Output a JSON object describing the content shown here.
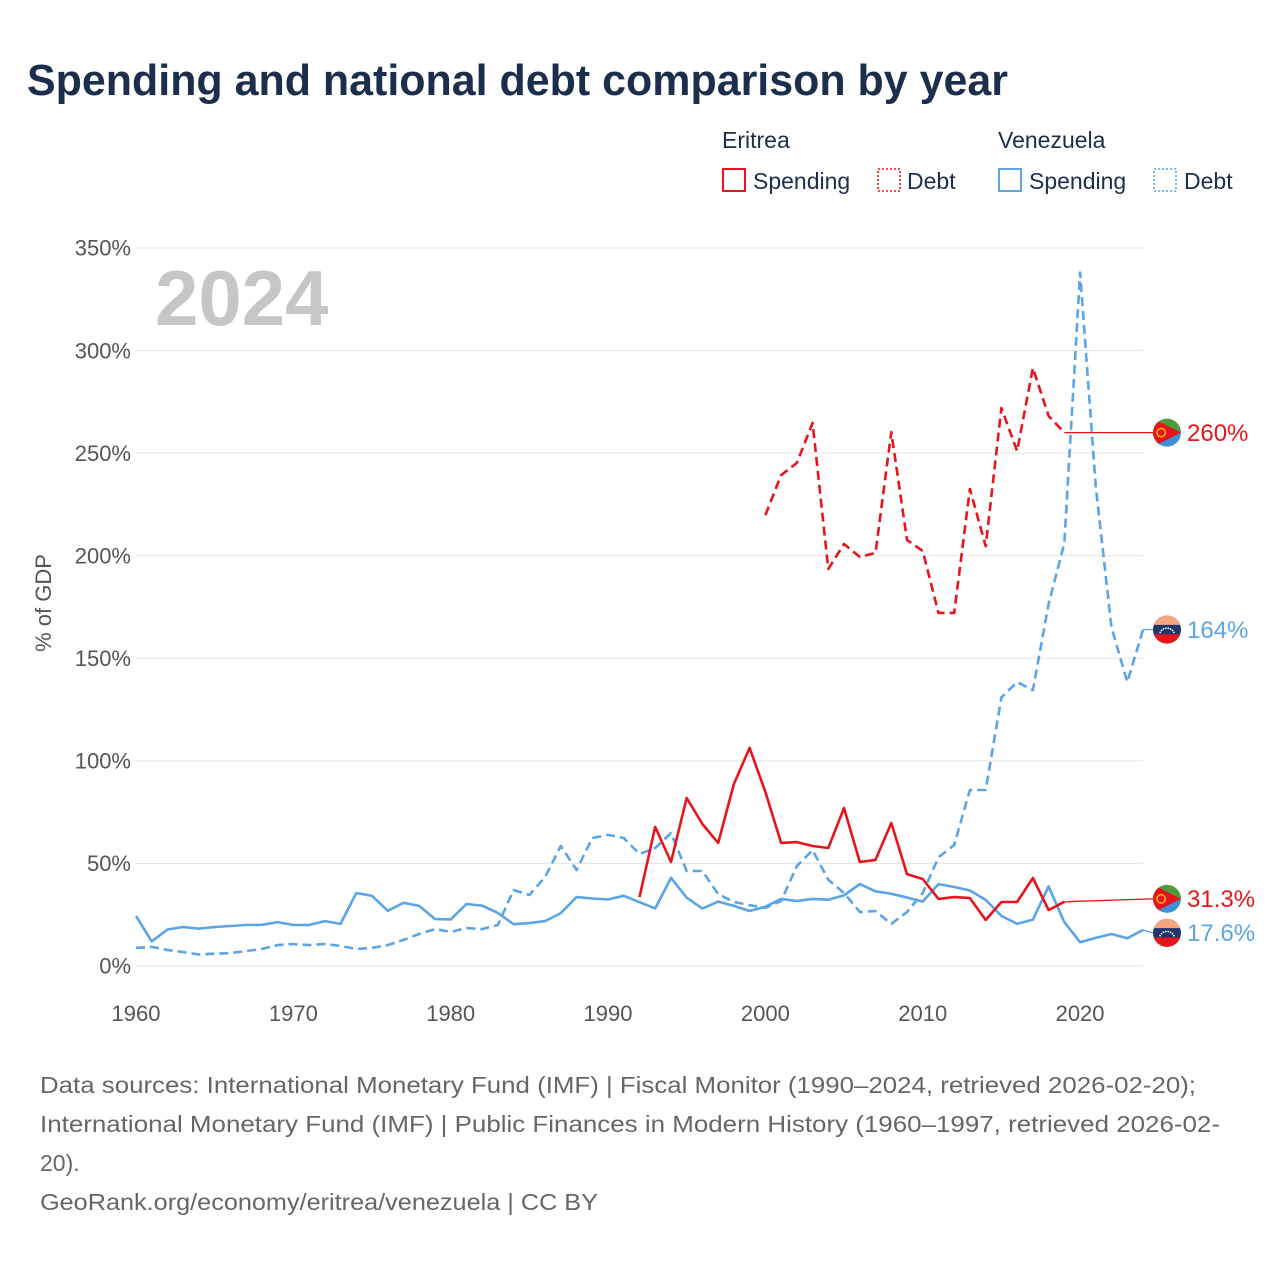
{
  "chart_data": {
    "type": "line",
    "title": "Spending and national debt comparison by year",
    "ylabel": "% of GDP",
    "year_label": "2024",
    "x_range": [
      1960,
      2024
    ],
    "ylim": [
      0,
      350
    ],
    "xticks": [
      1960,
      1970,
      1980,
      1990,
      2000,
      2010,
      2020
    ],
    "xtick_labels": [
      "1960",
      "1970",
      "1980",
      "1990",
      "2000",
      "2010",
      "2020"
    ],
    "yticks": [
      0,
      50,
      100,
      150,
      200,
      250,
      300,
      350
    ],
    "ytick_labels": [
      "0%",
      "50%",
      "100%",
      "150%",
      "200%",
      "250%",
      "300%",
      "350%"
    ],
    "grid": true,
    "legend_position": "top-right",
    "groups": [
      {
        "country": "Eritrea",
        "color": "#e8141b",
        "flag_icon": "eritrea-flag-icon",
        "series": [
          {
            "metric": "Spending",
            "dashed": false,
            "start_year": 1992,
            "values": [
              33.6,
              67.8,
              50.7,
              81.9,
              69.2,
              60.0,
              88.7,
              106.3,
              84.8,
              60.0,
              60.4,
              58.5,
              57.5,
              77.0,
              50.7,
              51.7,
              69.7,
              44.8,
              42.4,
              32.7,
              33.6,
              33.1,
              22.4,
              31.2,
              31.2,
              42.9,
              27.3,
              31.3
            ],
            "end_label": "31.3%"
          },
          {
            "metric": "Debt",
            "dashed": true,
            "start_year": 2000,
            "values": [
              219.8,
              239.3,
              245.2,
              264.7,
              193.5,
              205.7,
              199.4,
              201.3,
              260.3,
              207.7,
              202.3,
              172.1,
              172.1,
              232.5,
              204.7,
              272.0,
              251.0,
              291.5,
              268.1,
              260.0
            ],
            "end_label": "260%"
          }
        ]
      },
      {
        "country": "Venezuela",
        "color": "#5ba4e5",
        "flag_icon": "venezuela-flag-icon",
        "series": [
          {
            "metric": "Spending",
            "dashed": false,
            "start_year": 1960,
            "values": [
              24.4,
              12.0,
              17.8,
              19.0,
              18.2,
              19.0,
              19.5,
              20.0,
              20.1,
              21.4,
              20.0,
              20.0,
              21.9,
              20.5,
              35.6,
              34.2,
              26.9,
              30.8,
              29.3,
              22.9,
              22.7,
              30.2,
              29.4,
              25.9,
              20.4,
              20.9,
              21.9,
              25.8,
              33.6,
              32.9,
              32.4,
              34.2,
              31.1,
              28.1,
              43.0,
              33.3,
              28.0,
              31.4,
              29.3,
              26.8,
              28.9,
              32.7,
              31.7,
              32.7,
              32.3,
              34.4,
              39.9,
              36.4,
              35.2,
              33.4,
              31.4,
              39.9,
              38.5,
              36.8,
              32.2,
              24.4,
              20.5,
              22.6,
              38.8,
              21.4,
              11.6,
              13.7,
              15.6,
              13.5,
              17.6
            ],
            "end_label": "17.6%"
          },
          {
            "metric": "Debt",
            "dashed": true,
            "start_year": 1960,
            "values": [
              8.8,
              9.3,
              7.8,
              6.8,
              5.6,
              6.0,
              6.3,
              7.3,
              8.3,
              10.2,
              10.7,
              10.2,
              10.7,
              9.8,
              8.3,
              8.8,
              10.2,
              12.7,
              15.6,
              18.0,
              16.6,
              18.5,
              18.0,
              20.0,
              37.0,
              34.6,
              43.4,
              58.5,
              46.8,
              62.4,
              63.9,
              62.4,
              54.6,
              57.5,
              64.8,
              46.3,
              46.3,
              35.0,
              31.2,
              29.7,
              28.3,
              31.7,
              48.7,
              56.5,
              42.0,
              35.6,
              26.3,
              26.8,
              20.5,
              26.3,
              35.6,
              53.0,
              59.0,
              85.8,
              85.8,
              131.0,
              138.4,
              134.5,
              176.5,
              206.0,
              338.0,
              233.5,
              165.0,
              138.4,
              164.0
            ],
            "end_label": "164%"
          }
        ]
      }
    ]
  },
  "footer": {
    "sources": [
      "Data sources: International Monetary Fund (IMF) | Fiscal Monitor (1990–2024, retrieved 2026-02-20);",
      "International Monetary Fund (IMF) | Public Finances in Modern History (1960–1997, retrieved 2026-02-",
      "20)."
    ],
    "attribution": "GeoRank.org/economy/eritrea/venezuela | CC BY"
  }
}
